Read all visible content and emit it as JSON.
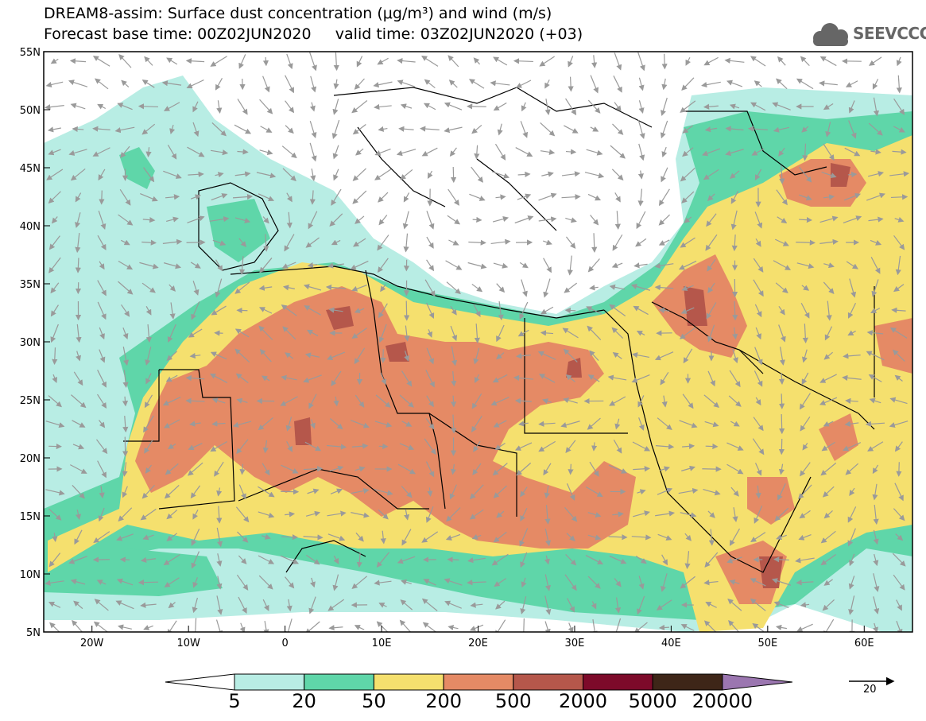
{
  "title": {
    "line1": "DREAM8-assim: Surface dust concentration (μg/m³) and wind (m/s)",
    "base_time_label": "Forecast base time: 00Z02JUN2020",
    "valid_time_label": "valid time: 03Z02JUN2020 (+03)"
  },
  "logo": {
    "text": "SEEVCCC",
    "icon": "cloud-icon"
  },
  "map": {
    "lat_ticks": [
      "55N",
      "50N",
      "45N",
      "40N",
      "35N",
      "30N",
      "25N",
      "20N",
      "15N",
      "10N",
      "5N"
    ],
    "lon_ticks": [
      "20W",
      "10W",
      "0",
      "10E",
      "20E",
      "30E",
      "40E",
      "50E",
      "60E"
    ],
    "lon_range": [
      -25,
      65
    ],
    "lat_range": [
      5,
      55
    ]
  },
  "colorbar": {
    "labels": [
      "5",
      "20",
      "50",
      "200",
      "500",
      "2000",
      "5000",
      "20000"
    ],
    "colors": [
      "#ffffff",
      "#b8ede4",
      "#5fd6a9",
      "#f5e06e",
      "#e58a65",
      "#b5574b",
      "#7d0a2a",
      "#3e2618",
      "#9b76b0"
    ]
  },
  "wind_reference": {
    "label": "20"
  },
  "colors": {
    "very_low": "#b8ede4",
    "low": "#5fd6a9",
    "mid": "#f5e06e",
    "high": "#e58a65",
    "very_high": "#b5574b",
    "extreme": "#7d0a2a",
    "arrow": "#9a9a9a"
  }
}
